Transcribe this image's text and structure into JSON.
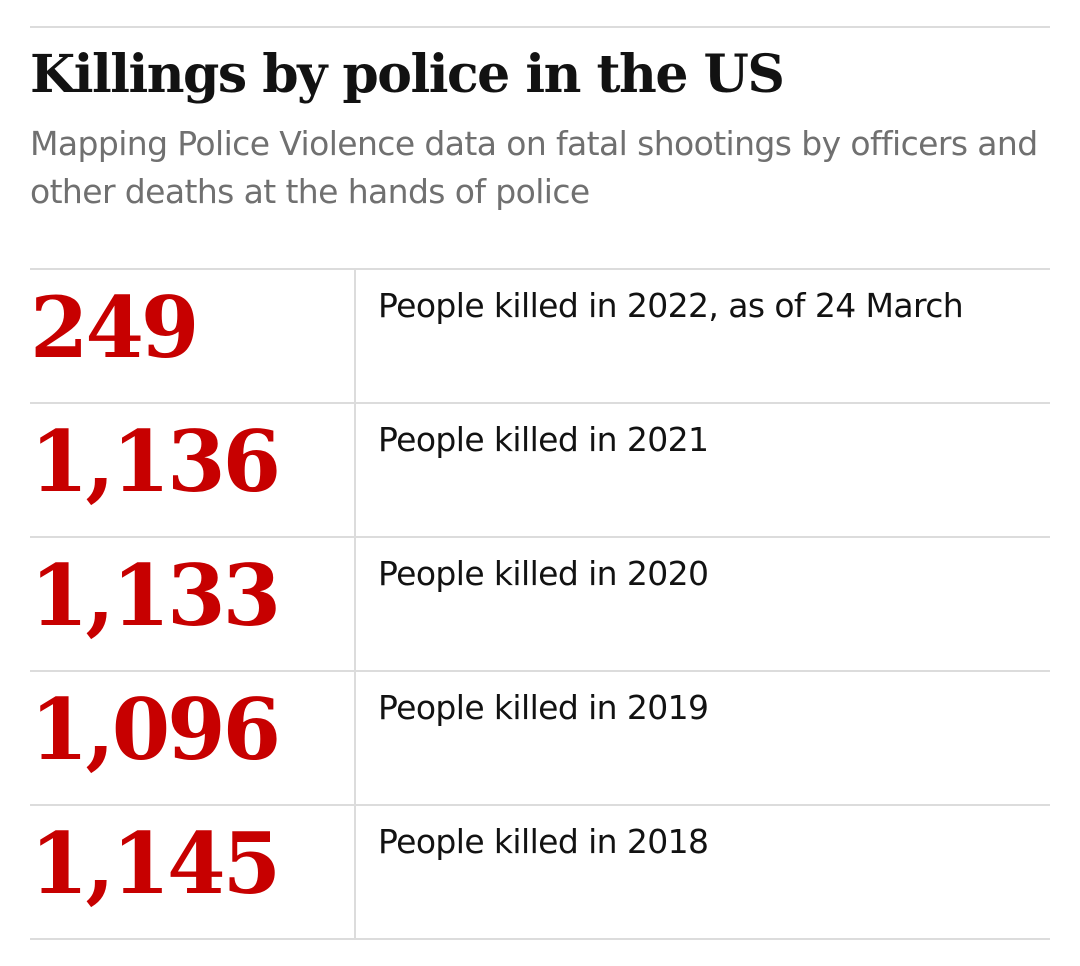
{
  "title": "Killings by police in the US",
  "subtitle": "Mapping Police Violence data on fatal shootings by officers and other deaths at the hands of police",
  "rows": [
    {
      "value": "249",
      "label": "People killed in 2022, as of 24 March"
    },
    {
      "value": "1,136",
      "label": "People killed in 2021"
    },
    {
      "value": "1,133",
      "label": "People killed in 2020"
    },
    {
      "value": "1,096",
      "label": "People killed in 2019"
    },
    {
      "value": "1,145",
      "label": "People killed in 2018"
    }
  ],
  "colors": {
    "number": "#c70000",
    "title": "#121212",
    "subtitle": "#707070",
    "rule": "#dcdcdc"
  },
  "chart_data": {
    "type": "table",
    "title": "Killings by police in the US",
    "subtitle": "Mapping Police Violence data on fatal shootings by officers and other deaths at the hands of police",
    "categories": [
      "2022, as of 24 March",
      "2021",
      "2020",
      "2019",
      "2018"
    ],
    "values": [
      249,
      1136,
      1133,
      1096,
      1145
    ]
  }
}
